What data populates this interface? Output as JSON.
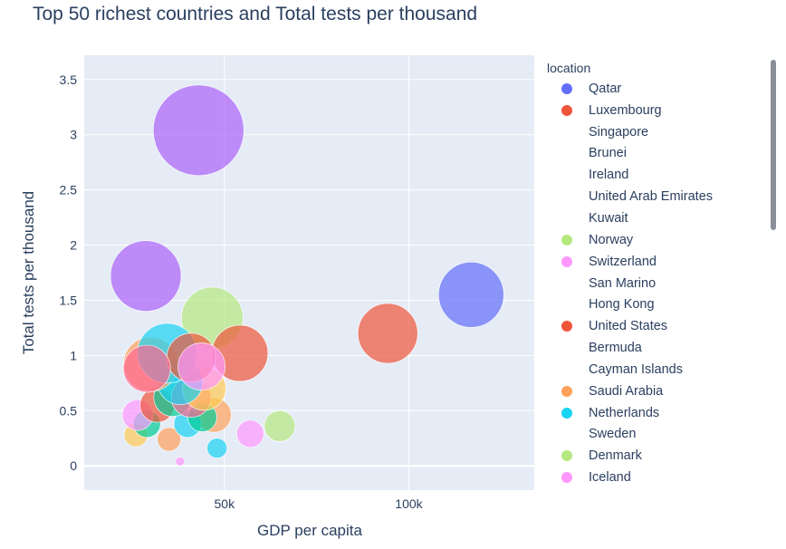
{
  "chart_data": {
    "type": "scatter",
    "title": "Top 50 richest countries and Total tests per thousand",
    "xlabel": "GDP per capita",
    "ylabel": "Total tests per thousand",
    "xlim": [
      12000,
      134000
    ],
    "ylim": [
      -0.22,
      3.72
    ],
    "x_ticks": [
      {
        "value": 50000,
        "label": "50k"
      },
      {
        "value": 100000,
        "label": "100k"
      }
    ],
    "y_ticks": [
      0,
      0.5,
      1,
      1.5,
      2,
      2.5,
      3,
      3.5
    ],
    "y_tick_labels": [
      "0",
      "0.5",
      "1",
      "1.5",
      "2",
      "2.5",
      "3",
      "3.5"
    ],
    "grid": true,
    "legend_title": "location",
    "legend_position": "right",
    "legend": [
      {
        "name": "Qatar",
        "color": "#636efa"
      },
      {
        "name": "Luxembourg",
        "color": "#ef553b"
      },
      {
        "name": "Singapore",
        "color": null
      },
      {
        "name": "Brunei",
        "color": null
      },
      {
        "name": "Ireland",
        "color": null
      },
      {
        "name": "United Arab Emirates",
        "color": null
      },
      {
        "name": "Kuwait",
        "color": null
      },
      {
        "name": "Norway",
        "color": "#b6e880"
      },
      {
        "name": "Switzerland",
        "color": "#ff97ff"
      },
      {
        "name": "San Marino",
        "color": null
      },
      {
        "name": "Hong Kong",
        "color": null
      },
      {
        "name": "United States",
        "color": "#ef553b"
      },
      {
        "name": "Bermuda",
        "color": null
      },
      {
        "name": "Cayman Islands",
        "color": null
      },
      {
        "name": "Saudi Arabia",
        "color": "#ffa15a"
      },
      {
        "name": "Netherlands",
        "color": "#19d3f3"
      },
      {
        "name": "Sweden",
        "color": null
      },
      {
        "name": "Denmark",
        "color": "#b6e880"
      },
      {
        "name": "Iceland",
        "color": "#ff97ff"
      }
    ],
    "points": [
      {
        "x": 116900,
        "y": 1.55,
        "size": 36,
        "color": "#636efa"
      },
      {
        "x": 94300,
        "y": 1.2,
        "size": 33,
        "color": "#ef553b"
      },
      {
        "x": 43000,
        "y": 3.04,
        "size": 50,
        "color": "#ab63fa"
      },
      {
        "x": 28700,
        "y": 1.72,
        "size": 39,
        "color": "#ab63fa"
      },
      {
        "x": 46700,
        "y": 1.34,
        "size": 34,
        "color": "#b6e880"
      },
      {
        "x": 54200,
        "y": 1.02,
        "size": 31,
        "color": "#ef553b"
      },
      {
        "x": 65000,
        "y": 0.36,
        "size": 17,
        "color": "#b6e880"
      },
      {
        "x": 57000,
        "y": 0.29,
        "size": 15,
        "color": "#ff97ff"
      },
      {
        "x": 48000,
        "y": 0.16,
        "size": 11,
        "color": "#19d3f3"
      },
      {
        "x": 38000,
        "y": 0.04,
        "size": 5,
        "color": "#ff97ff"
      },
      {
        "x": 35000,
        "y": 0.24,
        "size": 13,
        "color": "#ffa15a"
      },
      {
        "x": 26000,
        "y": 0.28,
        "size": 13,
        "color": "#fecb52"
      },
      {
        "x": 47200,
        "y": 0.46,
        "size": 19,
        "color": "#ffa15a"
      },
      {
        "x": 40000,
        "y": 0.38,
        "size": 15,
        "color": "#19d3f3"
      },
      {
        "x": 44000,
        "y": 0.44,
        "size": 16,
        "color": "#00cc96"
      },
      {
        "x": 29000,
        "y": 0.38,
        "size": 15,
        "color": "#00cc96"
      },
      {
        "x": 26500,
        "y": 0.46,
        "size": 17,
        "color": "#ff97ff"
      },
      {
        "x": 31800,
        "y": 0.55,
        "size": 19,
        "color": "#ef553b"
      },
      {
        "x": 36000,
        "y": 0.62,
        "size": 21,
        "color": "#00cc96"
      },
      {
        "x": 41000,
        "y": 0.62,
        "size": 22,
        "color": "#ff6692"
      },
      {
        "x": 44500,
        "y": 0.7,
        "size": 24,
        "color": "#fecb52"
      },
      {
        "x": 38000,
        "y": 0.76,
        "size": 25,
        "color": "#19d3f3"
      },
      {
        "x": 30000,
        "y": 0.92,
        "size": 30,
        "color": "#ffa15a"
      },
      {
        "x": 34500,
        "y": 1.02,
        "size": 33,
        "color": "#19d3f3"
      },
      {
        "x": 41000,
        "y": 0.98,
        "size": 27,
        "color": "#ef553b"
      },
      {
        "x": 43800,
        "y": 0.9,
        "size": 26,
        "color": "#ff97ff"
      },
      {
        "x": 29000,
        "y": 0.88,
        "size": 26,
        "color": "#ff6692"
      }
    ]
  }
}
